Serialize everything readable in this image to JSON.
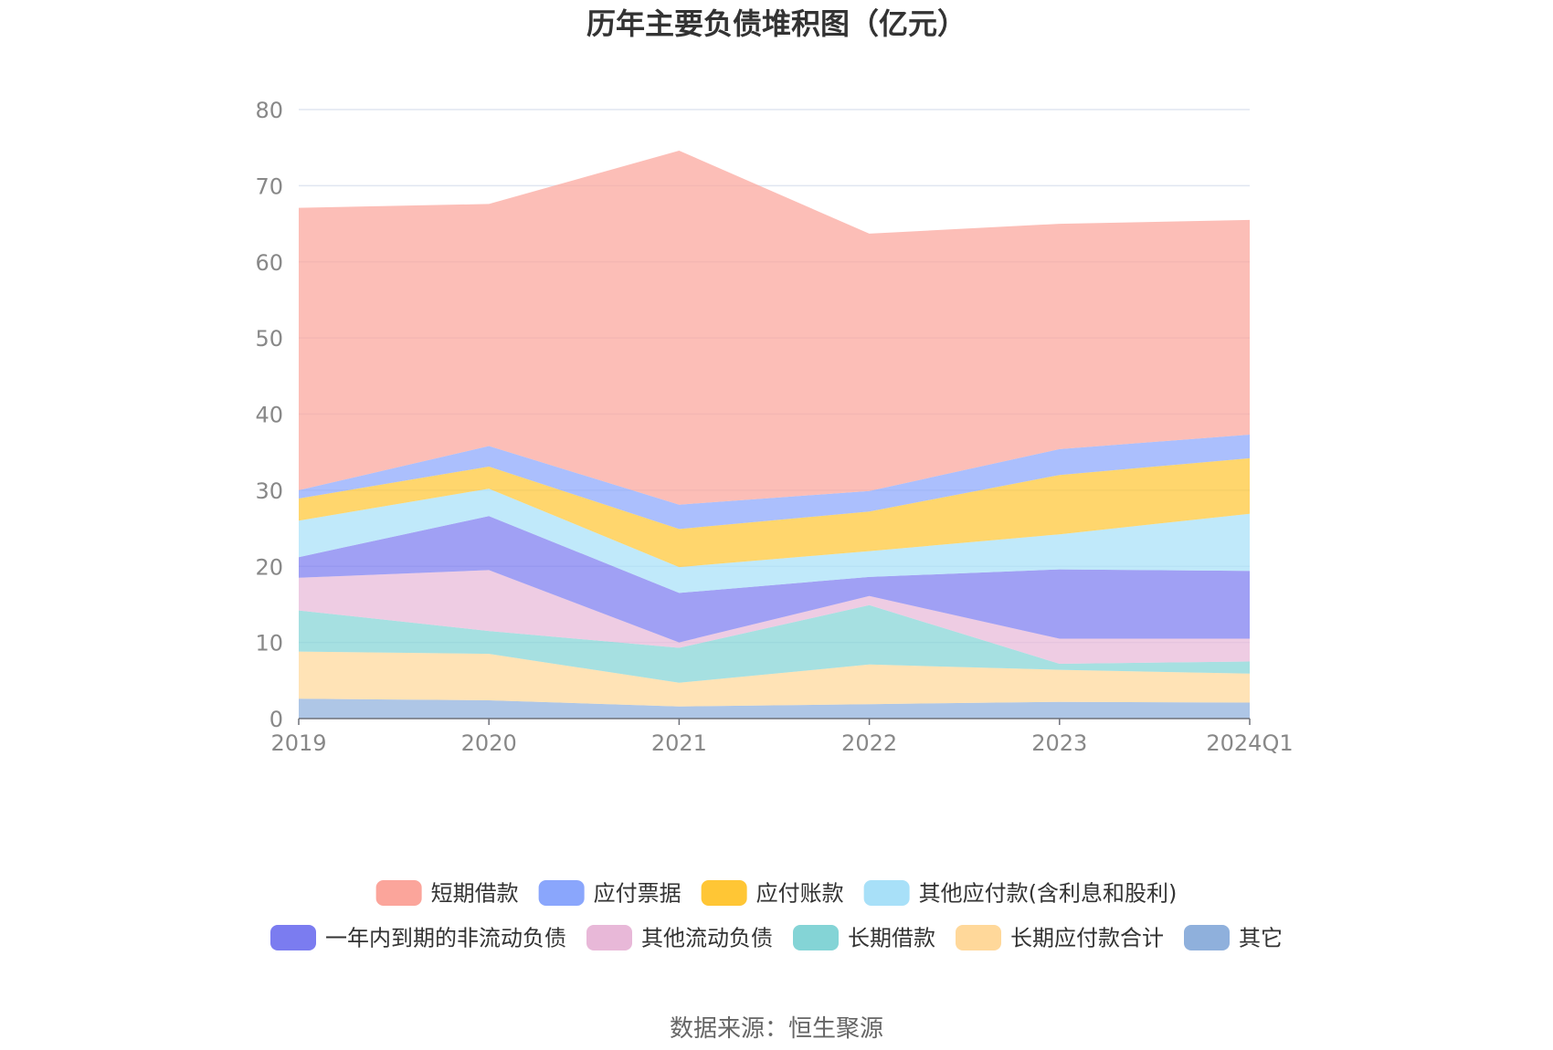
{
  "chart_data": {
    "type": "area",
    "title": "历年主要负债堆积图（亿元）",
    "source": "数据来源：恒生聚源",
    "categories": [
      "2019",
      "2020",
      "2021",
      "2022",
      "2023",
      "2024Q1"
    ],
    "y_ticks": [
      "0",
      "10",
      "20",
      "30",
      "40",
      "50",
      "60",
      "70",
      "80"
    ],
    "ylim": [
      0,
      80
    ],
    "stacked": true,
    "legend_position": "bottom",
    "series": [
      {
        "name": "其它",
        "color": "#8fb0dc",
        "values": [
          2.6,
          2.4,
          1.6,
          1.9,
          2.2,
          2.1
        ]
      },
      {
        "name": "长期应付款合计",
        "color": "#ffd89a",
        "values": [
          6.2,
          6.1,
          3.1,
          5.2,
          4.2,
          3.8
        ]
      },
      {
        "name": "长期借款",
        "color": "#84d4d6",
        "values": [
          5.4,
          3.0,
          4.6,
          7.8,
          0.8,
          1.6
        ]
      },
      {
        "name": "其他流动负债",
        "color": "#e8b8d8",
        "values": [
          4.3,
          8.0,
          0.7,
          1.2,
          3.3,
          3.0
        ]
      },
      {
        "name": "一年内到期的非流动负债",
        "color": "#7b7cf0",
        "values": [
          2.7,
          7.1,
          6.5,
          2.5,
          9.1,
          8.9
        ]
      },
      {
        "name": "其他应付款(含利息和股利)",
        "color": "#a8e0f8",
        "values": [
          4.8,
          3.6,
          3.4,
          3.4,
          4.6,
          7.5
        ]
      },
      {
        "name": "应付账款",
        "color": "#ffc635",
        "values": [
          2.9,
          2.9,
          5.0,
          5.2,
          7.8,
          7.3
        ]
      },
      {
        "name": "应付票据",
        "color": "#8aa6fc",
        "values": [
          1.1,
          2.7,
          3.2,
          2.7,
          3.4,
          3.1
        ]
      },
      {
        "name": "短期借款",
        "color": "#fba59b",
        "values": [
          37.1,
          31.8,
          46.5,
          33.8,
          29.6,
          28.2
        ]
      }
    ],
    "legend_order": [
      "短期借款",
      "应付票据",
      "应付账款",
      "其他应付款(含利息和股利)",
      "一年内到期的非流动负债",
      "其他流动负债",
      "长期借款",
      "长期应付款合计",
      "其它"
    ]
  }
}
